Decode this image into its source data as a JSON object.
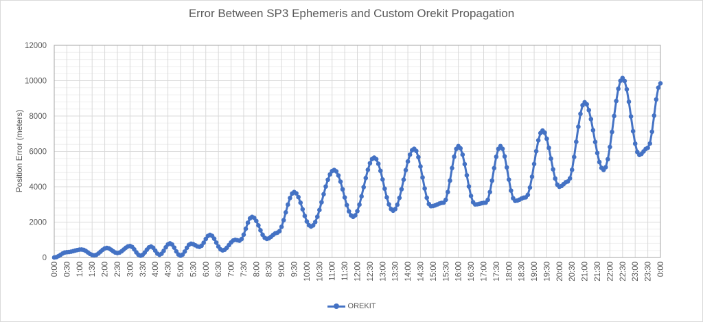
{
  "chart_data": {
    "type": "line",
    "title": "Error Between SP3 Ephemeris and Custom Orekit Propagation",
    "xlabel": "",
    "ylabel": "Position Error (meters)",
    "ylim": [
      0,
      12000
    ],
    "yticks": [
      0,
      2000,
      4000,
      6000,
      8000,
      10000,
      12000
    ],
    "xticks": [
      "0:00",
      "0:30",
      "1:00",
      "1:30",
      "2:00",
      "2:30",
      "3:00",
      "3:30",
      "4:00",
      "4:30",
      "5:00",
      "5:30",
      "6:00",
      "6:30",
      "7:00",
      "7:30",
      "8:00",
      "8:30",
      "9:00",
      "9:30",
      "10:00",
      "10:30",
      "11:00",
      "11:30",
      "12:00",
      "12:30",
      "13:00",
      "13:30",
      "14:00",
      "14:30",
      "15:00",
      "15:30",
      "16:00",
      "16:30",
      "17:00",
      "17:30",
      "18:00",
      "18:30",
      "19:00",
      "19:30",
      "20:00",
      "20:30",
      "21:00",
      "21:30",
      "22:00",
      "22:30",
      "23:00",
      "23:30",
      "0:00"
    ],
    "grid": true,
    "legend_position": "bottom",
    "color": "#4472C4",
    "series": [
      {
        "name": "OREKIT",
        "x": [
          "0:00",
          "0:30",
          "1:05",
          "1:35",
          "2:05",
          "2:30",
          "3:00",
          "3:25",
          "3:50",
          "4:10",
          "4:35",
          "5:00",
          "5:25",
          "5:45",
          "6:10",
          "6:40",
          "7:10",
          "7:20",
          "7:50",
          "8:25",
          "8:50",
          "9:30",
          "10:10",
          "11:05",
          "11:50",
          "12:40",
          "13:25",
          "14:15",
          "14:55",
          "15:25",
          "16:00",
          "16:40",
          "17:05",
          "17:40",
          "18:15",
          "18:40",
          "19:20",
          "20:00",
          "20:20",
          "21:00",
          "21:45",
          "22:30",
          "23:10",
          "23:30",
          "24:00"
        ],
        "y": [
          0,
          300,
          450,
          120,
          540,
          250,
          650,
          100,
          620,
          150,
          800,
          100,
          780,
          600,
          1280,
          400,
          1000,
          950,
          2300,
          1050,
          1400,
          3700,
          1750,
          4950,
          2300,
          5650,
          2650,
          6150,
          2900,
          3100,
          6300,
          3000,
          3100,
          6300,
          3200,
          3400,
          7180,
          4000,
          4300,
          8780,
          4950,
          10150,
          5800,
          6200,
          9850
        ]
      }
    ]
  }
}
